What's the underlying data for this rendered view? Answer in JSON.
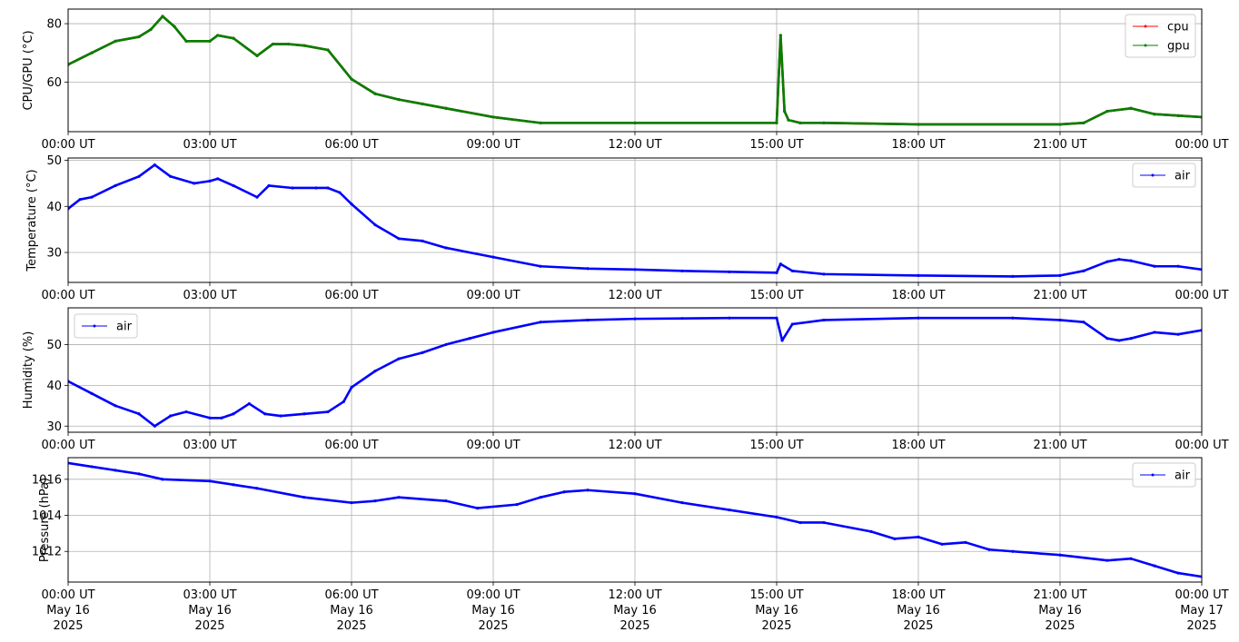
{
  "x_tick_labels": [
    "00:00 UT",
    "03:00 UT",
    "06:00 UT",
    "09:00 UT",
    "12:00 UT",
    "15:00 UT",
    "18:00 UT",
    "21:00 UT",
    "00:00 UT"
  ],
  "x_tick_date_line1": [
    "May 16",
    "May 16",
    "May 16",
    "May 16",
    "May 16",
    "May 16",
    "May 16",
    "May 16",
    "May 17"
  ],
  "x_tick_date_line2": [
    "2025",
    "2025",
    "2025",
    "2025",
    "2025",
    "2025",
    "2025",
    "2025",
    "2025"
  ],
  "chart_data": [
    {
      "type": "line",
      "ylabel": "CPU/GPU (°C)",
      "xlim": [
        "2025-05-16 00:00 UT",
        "2025-05-17 00:00 UT"
      ],
      "ylim": [
        43,
        85
      ],
      "yticks": [
        60,
        80
      ],
      "grid": true,
      "legend_position": "top-right",
      "x": [
        "00:00",
        "00:30",
        "01:00",
        "01:30",
        "01:45",
        "02:00",
        "02:15",
        "02:30",
        "03:00",
        "03:10",
        "03:30",
        "04:00",
        "04:20",
        "04:40",
        "05:00",
        "05:30",
        "06:00",
        "06:30",
        "07:00",
        "07:30",
        "08:00",
        "09:00",
        "10:00",
        "12:00",
        "15:00",
        "15:05",
        "15:10",
        "15:15",
        "15:30",
        "16:00",
        "18:00",
        "21:00",
        "21:30",
        "22:00",
        "22:30",
        "23:00",
        "23:30",
        "24:00"
      ],
      "series": [
        {
          "name": "cpu",
          "color": "#ff0000",
          "values": [
            66,
            70,
            74,
            75.5,
            78,
            82.5,
            79,
            74,
            74,
            76,
            75,
            69,
            73,
            73,
            72.5,
            71,
            61,
            56,
            54,
            52.5,
            51,
            48,
            46,
            46,
            46,
            76,
            50,
            47,
            46,
            46,
            45.5,
            45.5,
            46,
            50,
            51,
            49,
            48.5,
            48
          ]
        },
        {
          "name": "gpu",
          "color": "#008000",
          "values": [
            66,
            70,
            74,
            75.5,
            78,
            82.5,
            79,
            74,
            74,
            76,
            75,
            69,
            73,
            73,
            72.5,
            71,
            61,
            56,
            54,
            52.5,
            51,
            48,
            46,
            46,
            46,
            76,
            50,
            47,
            46,
            46,
            45.5,
            45.5,
            46,
            50,
            51,
            49,
            48.5,
            48
          ]
        }
      ]
    },
    {
      "type": "line",
      "ylabel": "Temperature (°C)",
      "xlim": [
        "2025-05-16 00:00 UT",
        "2025-05-17 00:00 UT"
      ],
      "ylim": [
        23.5,
        50.5
      ],
      "yticks": [
        30,
        40,
        50
      ],
      "grid": true,
      "legend_position": "top-right",
      "x": [
        "00:00",
        "00:15",
        "00:30",
        "01:00",
        "01:30",
        "01:50",
        "02:10",
        "02:40",
        "03:00",
        "03:10",
        "03:30",
        "04:00",
        "04:15",
        "04:45",
        "05:15",
        "05:30",
        "05:45",
        "06:00",
        "06:30",
        "07:00",
        "07:30",
        "08:00",
        "09:00",
        "10:00",
        "11:00",
        "12:00",
        "13:00",
        "14:00",
        "15:00",
        "15:05",
        "15:20",
        "16:00",
        "18:00",
        "20:00",
        "21:00",
        "21:30",
        "22:00",
        "22:15",
        "22:30",
        "23:00",
        "23:30",
        "24:00"
      ],
      "series": [
        {
          "name": "air",
          "color": "#0000ff",
          "values": [
            39.5,
            41.5,
            42,
            44.5,
            46.5,
            49,
            46.5,
            45,
            45.5,
            46,
            44.5,
            42,
            44.5,
            44,
            44,
            44,
            43,
            40.5,
            36,
            33,
            32.5,
            31,
            29,
            27,
            26.5,
            26.3,
            26,
            25.8,
            25.6,
            27.5,
            26,
            25.3,
            25,
            24.8,
            25,
            26,
            28,
            28.5,
            28.2,
            27,
            27,
            26.3
          ]
        }
      ]
    },
    {
      "type": "line",
      "ylabel": "Humidity (%)",
      "xlim": [
        "2025-05-16 00:00 UT",
        "2025-05-17 00:00 UT"
      ],
      "ylim": [
        28.5,
        59
      ],
      "yticks": [
        30,
        40,
        50
      ],
      "grid": true,
      "legend_position": "top-left",
      "x": [
        "00:00",
        "00:30",
        "01:00",
        "01:30",
        "01:50",
        "02:10",
        "02:30",
        "03:00",
        "03:15",
        "03:30",
        "03:50",
        "04:10",
        "04:30",
        "05:00",
        "05:30",
        "05:50",
        "06:00",
        "06:30",
        "07:00",
        "07:30",
        "08:00",
        "08:30",
        "09:00",
        "10:00",
        "11:00",
        "12:00",
        "13:00",
        "14:00",
        "15:00",
        "15:07",
        "15:20",
        "16:00",
        "18:00",
        "20:00",
        "21:00",
        "21:30",
        "22:00",
        "22:15",
        "22:30",
        "23:00",
        "23:30",
        "24:00"
      ],
      "series": [
        {
          "name": "air",
          "color": "#0000ff",
          "values": [
            41,
            38,
            35,
            33,
            30,
            32.5,
            33.5,
            32,
            32,
            33,
            35.5,
            33,
            32.5,
            33,
            33.5,
            36,
            39.5,
            43.5,
            46.5,
            48,
            50,
            51.5,
            53,
            55.5,
            56,
            56.3,
            56.4,
            56.5,
            56.5,
            51,
            55,
            56,
            56.5,
            56.5,
            56,
            55.5,
            51.5,
            51,
            51.5,
            53,
            52.5,
            53.5
          ]
        }
      ]
    },
    {
      "type": "line",
      "ylabel": "Pressure (hPa)",
      "xlim": [
        "2025-05-16 00:00 UT",
        "2025-05-17 00:00 UT"
      ],
      "ylim": [
        1010.3,
        1017.2
      ],
      "yticks": [
        1012,
        1014,
        1016
      ],
      "grid": true,
      "legend_position": "top-right",
      "x": [
        "00:00",
        "00:30",
        "01:00",
        "01:30",
        "02:00",
        "03:00",
        "03:30",
        "04:00",
        "05:00",
        "06:00",
        "06:30",
        "07:00",
        "08:00",
        "08:40",
        "09:30",
        "10:00",
        "10:30",
        "11:00",
        "12:00",
        "13:00",
        "14:00",
        "15:00",
        "15:30",
        "16:00",
        "17:00",
        "17:30",
        "18:00",
        "18:30",
        "19:00",
        "19:30",
        "20:00",
        "21:00",
        "22:00",
        "22:30",
        "23:00",
        "23:30",
        "24:00"
      ],
      "series": [
        {
          "name": "air",
          "color": "#0000ff",
          "values": [
            1016.9,
            1016.7,
            1016.5,
            1016.3,
            1016.0,
            1015.9,
            1015.7,
            1015.5,
            1015.0,
            1014.7,
            1014.8,
            1015.0,
            1014.8,
            1014.4,
            1014.6,
            1015.0,
            1015.3,
            1015.4,
            1015.2,
            1014.7,
            1014.3,
            1013.9,
            1013.6,
            1013.6,
            1013.1,
            1012.7,
            1012.8,
            1012.4,
            1012.5,
            1012.1,
            1012.0,
            1011.8,
            1011.5,
            1011.6,
            1011.2,
            1010.8,
            1010.6
          ]
        }
      ]
    }
  ]
}
